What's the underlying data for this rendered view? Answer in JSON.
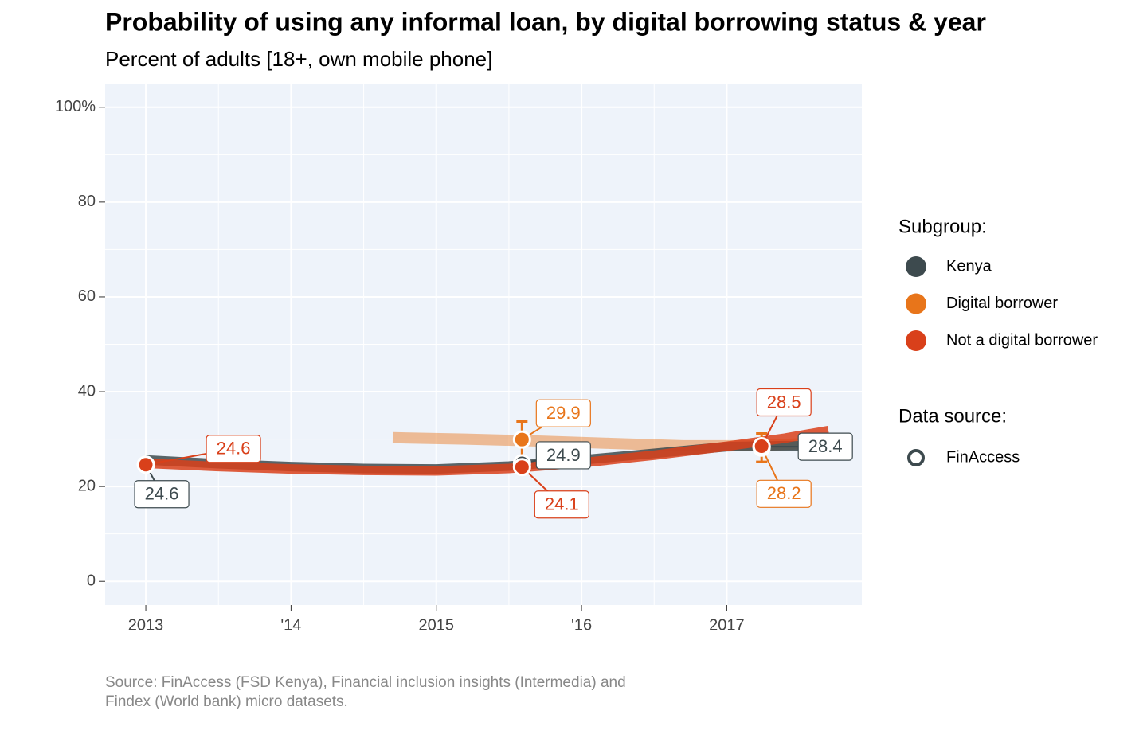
{
  "chart_data": {
    "type": "line",
    "title": "Probability of using any informal loan, by digital borrowing status & year",
    "subtitle": "Percent of adults [18+, own mobile phone]",
    "caption": [
      "Source: FinAccess (FSD Kenya), Financial inclusion insights (Intermedia) and",
      "Findex (World bank) micro datasets."
    ],
    "legend_title": "Subgroup:",
    "source_legend_title": "Data source:",
    "source_name": "FinAccess",
    "xlim": [
      2012.72,
      2017.93
    ],
    "xticks": [
      2013,
      {
        "value": 2014,
        "label": "'14"
      },
      2015,
      {
        "value": 2016,
        "label": "'16"
      },
      2017
    ],
    "ylim": [
      -5,
      105
    ],
    "yticks": [
      0,
      20,
      40,
      60,
      80,
      {
        "value": 100,
        "label": "100%"
      }
    ],
    "grid": true,
    "series": [
      {
        "name": "Kenya",
        "color": "#3d4a4e",
        "x": [
          2013,
          2015.59,
          2017.24
        ],
        "values": [
          24.6,
          24.9,
          28.4
        ],
        "trend": {
          "x": [
            2013,
            2013.5,
            2014,
            2014.5,
            2015,
            2015.5,
            2016,
            2016.5,
            2017,
            2017.4,
            2017.7
          ],
          "values": [
            25.6,
            24.8,
            24.2,
            23.8,
            23.7,
            24.3,
            25.6,
            27.0,
            28.4,
            28.6,
            28.5
          ]
        }
      },
      {
        "name": "Digital borrower",
        "color": "#e8751a",
        "x": [
          2015.59,
          2017.24
        ],
        "values": [
          29.9,
          28.2
        ],
        "errors": [
          3.8,
          3.0
        ],
        "trend": {
          "x": [
            2014.7,
            2015.2,
            2015.7,
            2016.2,
            2016.7,
            2017.2,
            2017.7
          ],
          "values": [
            30.3,
            30.0,
            29.6,
            29.1,
            28.6,
            28.6,
            29.3
          ]
        }
      },
      {
        "name": "Not a digital borrower",
        "color": "#d9401a",
        "x": [
          2013,
          2015.59,
          2017.24
        ],
        "values": [
          24.6,
          24.1,
          28.5
        ],
        "trend": {
          "x": [
            2013,
            2013.5,
            2014,
            2014.5,
            2015,
            2015.5,
            2016,
            2016.5,
            2017,
            2017.4,
            2017.7
          ],
          "values": [
            24.9,
            24.2,
            23.7,
            23.4,
            23.3,
            23.8,
            25.0,
            26.6,
            28.5,
            30.2,
            31.8
          ]
        }
      }
    ]
  }
}
